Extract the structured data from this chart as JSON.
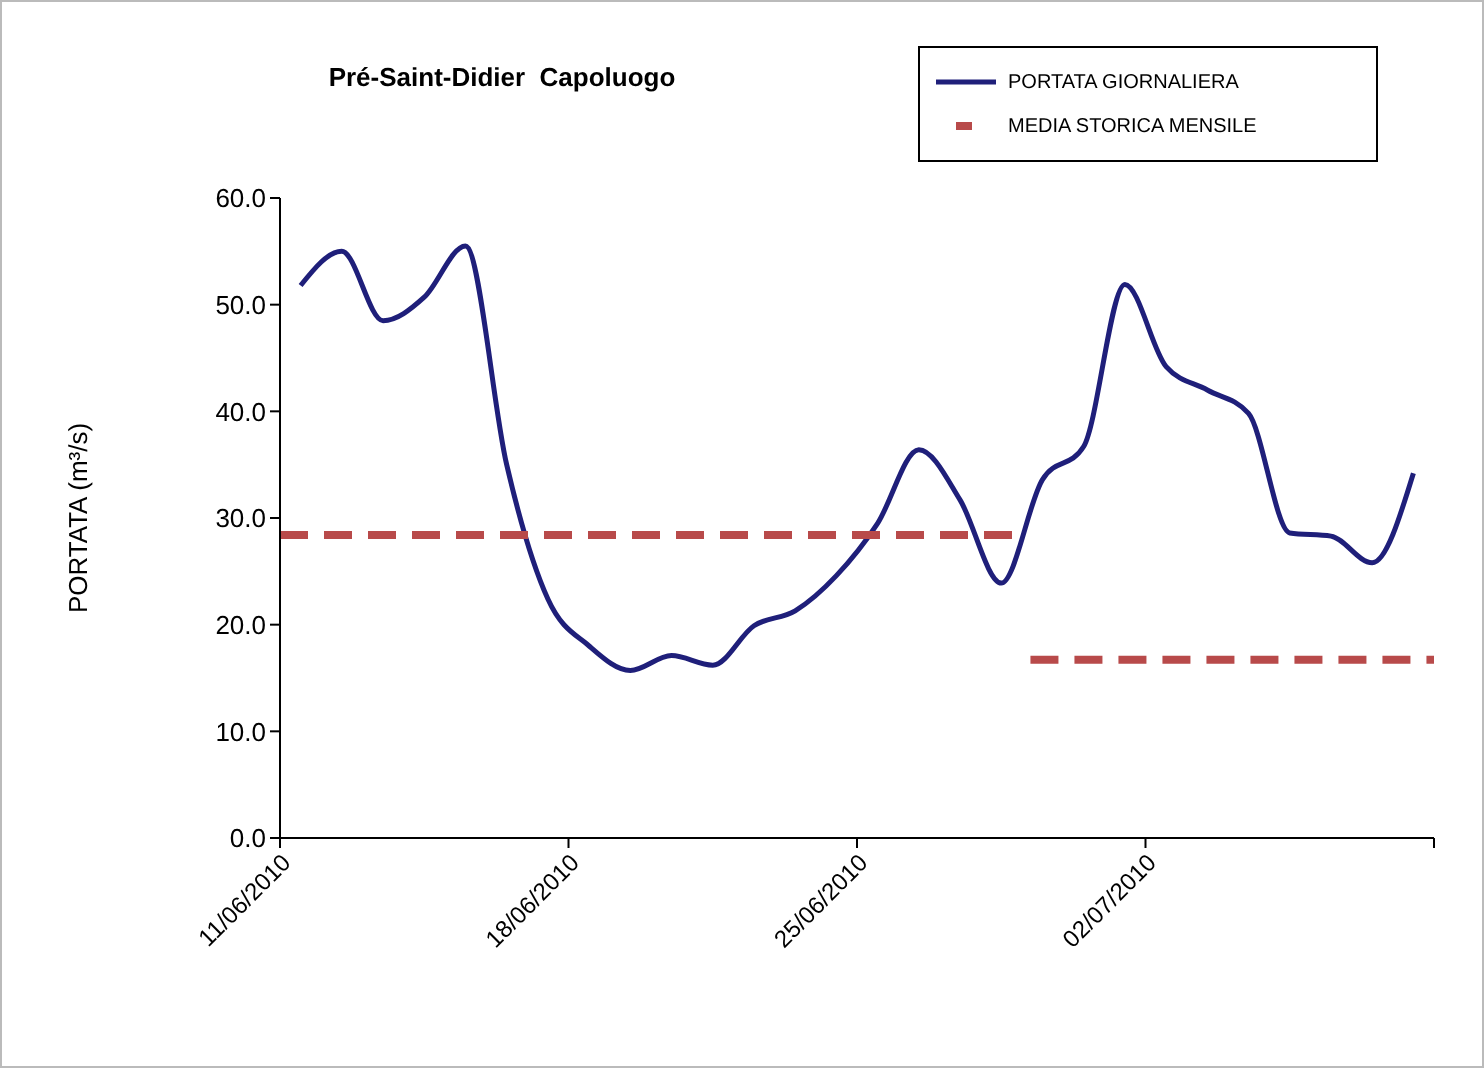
{
  "chart_data": {
    "type": "line",
    "title": "Pré-Saint-Didier  Capoluogo",
    "ylabel": "PORTATA (m³/s)",
    "xlim": [
      "2010-06-11",
      "2010-07-09"
    ],
    "xticks": [
      {
        "value": "2010-06-11",
        "label": "11/06/2010"
      },
      {
        "value": "2010-06-18",
        "label": "18/06/2010"
      },
      {
        "value": "2010-06-25",
        "label": "25/06/2010"
      },
      {
        "value": "2010-07-02",
        "label": "02/07/2010"
      },
      {
        "value": "2010-07-09",
        "label": null
      }
    ],
    "ylim": [
      0,
      60
    ],
    "yticks": [
      {
        "value": 0,
        "label": "0.0"
      },
      {
        "value": 10,
        "label": "10.0"
      },
      {
        "value": 20,
        "label": "20.0"
      },
      {
        "value": 30,
        "label": "30.0"
      },
      {
        "value": 40,
        "label": "40.0"
      },
      {
        "value": 50,
        "label": "50.0"
      },
      {
        "value": 60,
        "label": "60.0"
      }
    ],
    "legend": "top right",
    "marker": "none",
    "series": [
      {
        "name": "PORTATA GIORNALIERA",
        "color": "#1f1f7a",
        "line_style": "solid",
        "x": [
          "2010-06-11T12:00",
          "2010-06-12T12:00",
          "2010-06-13T12:00",
          "2010-06-14T12:00",
          "2010-06-15T12:00",
          "2010-06-16T12:00",
          "2010-06-17T12:00",
          "2010-06-18T12:00",
          "2010-06-19T12:00",
          "2010-06-20T12:00",
          "2010-06-21T12:00",
          "2010-06-22T12:00",
          "2010-06-23T12:00",
          "2010-06-24T12:00",
          "2010-06-25T12:00",
          "2010-06-26T12:00",
          "2010-06-27T12:00",
          "2010-06-28T12:00",
          "2010-06-29T12:00",
          "2010-06-30T12:00",
          "2010-07-01T12:00",
          "2010-07-02T12:00",
          "2010-07-03T12:00",
          "2010-07-04T12:00",
          "2010-07-05T12:00",
          "2010-07-06T12:00",
          "2010-07-07T12:00",
          "2010-07-08T12:00"
        ],
        "values": [
          51.8,
          55.0,
          48.5,
          50.7,
          55.5,
          35.0,
          22.4,
          18.0,
          15.7,
          17.1,
          16.2,
          19.9,
          21.3,
          24.6,
          29.5,
          36.4,
          31.7,
          23.9,
          33.6,
          36.7,
          51.9,
          44.2,
          42.0,
          39.8,
          28.6,
          28.3,
          25.8,
          34.2
        ]
      },
      {
        "name": "MEDIA STORICA MENSILE",
        "color": "#b84a4a",
        "line_style": "dashed",
        "x": [
          "2010-06-11",
          "2010-06-28T19:00",
          "2010-06-29T00:00",
          "2010-06-29T05:00",
          "2010-07-09"
        ],
        "values": [
          28.4,
          28.4,
          null,
          16.7,
          16.7
        ]
      }
    ]
  }
}
